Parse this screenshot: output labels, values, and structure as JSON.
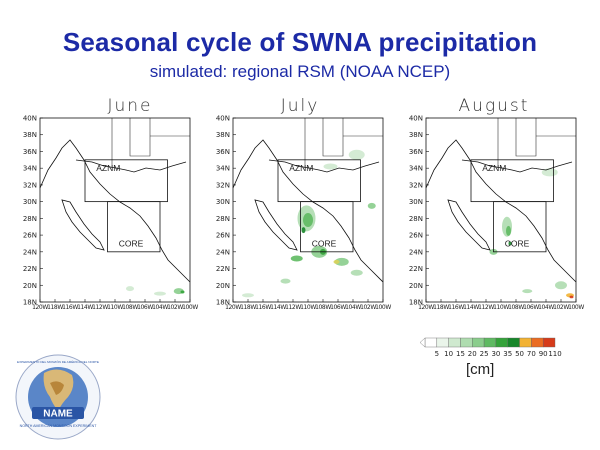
{
  "title": "Seasonal cycle of SWNA precipitation",
  "subtitle": "simulated: regional RSM (NOAA NCEP)",
  "panels": [
    {
      "month": "June",
      "box_labels": [
        "AZNM",
        "CORE"
      ]
    },
    {
      "month": "July",
      "box_labels": [
        "AZNM",
        "CORE"
      ]
    },
    {
      "month": "August",
      "box_labels": [
        "AZNM",
        "CORE"
      ]
    }
  ],
  "lat_labels": [
    "40N",
    "38N",
    "36N",
    "34N",
    "32N",
    "30N",
    "28N",
    "26N",
    "24N",
    "22N",
    "20N",
    "18N"
  ],
  "lon_labels": [
    "120W",
    "118W",
    "116W",
    "114W",
    "112W",
    "110W",
    "108W",
    "106W",
    "104W",
    "102W",
    "100W"
  ],
  "legend": {
    "values": [
      "5",
      "10",
      "15",
      "20",
      "25",
      "30",
      "35",
      "50",
      "70",
      "90",
      "110"
    ],
    "colors": [
      "#ffffff",
      "#eaf5ea",
      "#cfe9cf",
      "#aedcaf",
      "#8acd8c",
      "#5fba62",
      "#34a33a",
      "#17862a",
      "#f2b233",
      "#ea6c22",
      "#d63b1a"
    ],
    "unit": "[cm]"
  },
  "logo": {
    "text": [
      "NAME",
      "NORTH AMERICAN MONSOON EXPERIMENT",
      "EXPERIMENTO DEL MONZÓN DE AMÉRICA DEL NORTE"
    ]
  }
}
